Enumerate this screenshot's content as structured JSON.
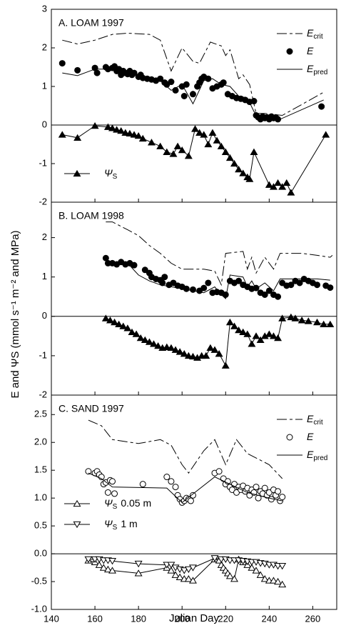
{
  "ylabel": "E and ΨS (mmol s⁻¹ m⁻² and MPa)",
  "xlabel": "Julian Day",
  "chart_data": [
    {
      "type": "line",
      "panel_label": "A. LOAM 1997",
      "ylim": [
        -2,
        3
      ],
      "yticks": [
        -2,
        -1,
        0,
        1,
        2,
        3
      ],
      "legend": true,
      "series": [
        {
          "name": "E",
          "subscript": "crit",
          "line": "dashed",
          "marker": "none",
          "color": "#000000",
          "x": [
            145,
            152,
            160,
            168,
            175,
            185,
            190,
            195,
            200,
            205,
            208,
            213,
            218,
            220,
            222,
            226,
            228,
            231,
            234,
            238,
            246,
            265
          ],
          "values": [
            2.2,
            2.1,
            2.2,
            2.35,
            2.38,
            2.35,
            2.2,
            1.4,
            2.0,
            1.65,
            1.6,
            2.15,
            2.05,
            1.8,
            1.95,
            1.2,
            1.3,
            1.05,
            0.3,
            0.3,
            0.25,
            0.85
          ]
        },
        {
          "name": "E",
          "line": "none",
          "marker": "filled-circle",
          "color": "#000000",
          "x": [
            145,
            152,
            160,
            161,
            165,
            166,
            168,
            169,
            170,
            171,
            172,
            173,
            174,
            175,
            176,
            177,
            178,
            180,
            181,
            182,
            184,
            186,
            188,
            190,
            192,
            193,
            195,
            197,
            200,
            201,
            202,
            205,
            207,
            208,
            209,
            210,
            212,
            214,
            216,
            218,
            219,
            221,
            223,
            225,
            227,
            229,
            231,
            233,
            234,
            235,
            236,
            237,
            238,
            239,
            240,
            241,
            242,
            243,
            244,
            264
          ],
          "values": [
            1.6,
            1.42,
            1.48,
            1.35,
            1.5,
            1.45,
            1.48,
            1.52,
            1.4,
            1.45,
            1.3,
            1.4,
            1.35,
            1.32,
            1.4,
            1.3,
            1.35,
            1.25,
            1.3,
            1.22,
            1.2,
            1.18,
            1.15,
            1.2,
            1.1,
            1.05,
            1.12,
            0.9,
            1.0,
            0.75,
            1.05,
            0.8,
            1.0,
            1.1,
            1.2,
            1.25,
            1.2,
            0.95,
            1.0,
            1.05,
            1.1,
            0.8,
            0.75,
            0.7,
            0.68,
            0.65,
            0.6,
            0.62,
            0.25,
            0.2,
            0.15,
            0.22,
            0.18,
            0.2,
            0.15,
            0.22,
            0.18,
            0.2,
            0.15,
            0.48
          ]
        },
        {
          "name": "E",
          "subscript": "pred",
          "line": "solid",
          "marker": "none",
          "color": "#000000",
          "x": [
            145,
            152,
            160,
            168,
            172,
            180,
            190,
            195,
            200,
            205,
            210,
            214,
            218,
            222,
            226,
            230,
            233,
            235,
            245,
            265
          ],
          "values": [
            1.35,
            1.28,
            1.45,
            1.45,
            1.4,
            1.28,
            1.15,
            0.9,
            1.05,
            0.55,
            1.15,
            1.2,
            1.05,
            1.0,
            0.75,
            0.7,
            0.35,
            0.2,
            0.15,
            0.65
          ]
        },
        {
          "name": "Ψ",
          "subscript": "S",
          "line": "solid",
          "marker": "filled-triangle",
          "color": "#000000",
          "x": [
            145,
            152,
            160,
            166,
            168,
            170,
            172,
            174,
            176,
            178,
            180,
            182,
            186,
            190,
            193,
            196,
            198,
            200,
            203,
            206,
            208,
            210,
            212,
            214,
            216,
            218,
            220,
            222,
            224,
            226,
            228,
            230,
            231,
            233,
            240,
            242,
            244,
            246,
            248,
            250,
            266
          ],
          "values": [
            -0.25,
            -0.33,
            -0.02,
            -0.05,
            -0.08,
            -0.12,
            -0.15,
            -0.2,
            -0.22,
            -0.25,
            -0.28,
            -0.35,
            -0.45,
            -0.55,
            -0.7,
            -0.75,
            -0.55,
            -0.65,
            -0.8,
            -0.1,
            -0.2,
            -0.25,
            -0.5,
            -0.2,
            -0.4,
            -0.55,
            -0.7,
            -0.85,
            -1.0,
            -1.15,
            -1.25,
            -1.35,
            -1.4,
            -0.7,
            -1.55,
            -1.6,
            -1.5,
            -1.6,
            -1.5,
            -1.75,
            -0.25
          ]
        }
      ]
    },
    {
      "type": "line",
      "panel_label": "B. LOAM 1998",
      "ylim": [
        -2,
        2.9
      ],
      "yticks": [
        -2,
        -1,
        0,
        1,
        2
      ],
      "legend": false,
      "series": [
        {
          "name": "E",
          "subscript": "crit",
          "line": "dashed",
          "marker": "none",
          "color": "#000000",
          "x": [
            165,
            168,
            175,
            180,
            185,
            190,
            195,
            200,
            210,
            215,
            218,
            220,
            228,
            230,
            232,
            234,
            238,
            242,
            245,
            255,
            262,
            268,
            269
          ],
          "values": [
            2.4,
            2.4,
            2.2,
            2.05,
            1.8,
            1.6,
            1.35,
            1.2,
            1.2,
            1.15,
            0.8,
            1.6,
            1.65,
            1.2,
            1.5,
            1.1,
            1.5,
            1.2,
            1.6,
            1.6,
            1.55,
            1.5,
            1.55
          ]
        },
        {
          "name": "E",
          "line": "none",
          "marker": "filled-circle",
          "color": "#000000",
          "x": [
            165,
            166,
            168,
            170,
            172,
            174,
            176,
            178,
            183,
            185,
            186,
            188,
            190,
            191,
            192,
            194,
            196,
            198,
            200,
            202,
            205,
            208,
            210,
            212,
            214,
            216,
            218,
            220,
            222,
            224,
            226,
            228,
            230,
            232,
            234,
            236,
            238,
            240,
            242,
            244,
            246,
            248,
            250,
            252,
            254,
            256,
            258,
            260,
            262,
            266,
            268
          ],
          "values": [
            1.48,
            1.35,
            1.35,
            1.32,
            1.38,
            1.32,
            1.35,
            1.3,
            1.18,
            1.1,
            1.0,
            0.95,
            0.92,
            0.85,
            1.0,
            0.8,
            0.85,
            0.78,
            0.75,
            0.7,
            0.68,
            0.65,
            0.72,
            0.85,
            0.6,
            0.62,
            0.6,
            0.55,
            0.9,
            0.85,
            0.9,
            0.8,
            0.75,
            0.7,
            0.72,
            0.6,
            0.55,
            0.65,
            0.55,
            0.5,
            0.85,
            0.78,
            0.8,
            0.9,
            0.85,
            0.95,
            0.9,
            0.85,
            0.8,
            0.78,
            0.73
          ]
        },
        {
          "name": "E",
          "subscript": "pred",
          "line": "solid",
          "marker": "none",
          "color": "#000000",
          "x": [
            165,
            175,
            180,
            185,
            190,
            200,
            210,
            215,
            218,
            220,
            222,
            228,
            230,
            232,
            234,
            238,
            242,
            245,
            255,
            262,
            268
          ],
          "values": [
            1.35,
            1.35,
            1.05,
            0.9,
            0.8,
            0.7,
            0.6,
            0.75,
            0.55,
            0.45,
            1.05,
            1.0,
            0.75,
            0.9,
            0.7,
            0.85,
            0.65,
            0.95,
            0.95,
            0.95,
            0.92
          ]
        },
        {
          "name": "Ψ",
          "subscript": "S",
          "line": "solid",
          "marker": "filled-triangle",
          "color": "#000000",
          "x": [
            165,
            167,
            169,
            171,
            173,
            175,
            177,
            179,
            181,
            183,
            185,
            187,
            189,
            191,
            193,
            195,
            197,
            199,
            201,
            203,
            205,
            207,
            209,
            211,
            213,
            215,
            217,
            220,
            222,
            224,
            226,
            228,
            230,
            232,
            234,
            236,
            238,
            240,
            242,
            244,
            246,
            250,
            252,
            255,
            258,
            262,
            265,
            268
          ],
          "values": [
            -0.05,
            -0.1,
            -0.15,
            -0.2,
            -0.25,
            -0.3,
            -0.4,
            -0.45,
            -0.55,
            -0.6,
            -0.65,
            -0.7,
            -0.75,
            -0.8,
            -0.78,
            -0.8,
            -0.85,
            -0.9,
            -0.95,
            -1.0,
            -1.02,
            -1.05,
            -1.0,
            -1.0,
            -0.8,
            -0.85,
            -0.95,
            -1.25,
            -0.15,
            -0.25,
            -0.35,
            -0.4,
            -0.45,
            -0.7,
            -0.5,
            -0.6,
            -0.5,
            -0.45,
            -0.5,
            -0.55,
            -0.05,
            -0.02,
            -0.05,
            -0.1,
            -0.12,
            -0.15,
            -0.2,
            -0.2
          ]
        }
      ]
    },
    {
      "type": "line",
      "panel_label": "C. SAND 1997",
      "ylim": [
        -1,
        2.85
      ],
      "yticks": [
        {
          "value": -1,
          "label": "-1.0"
        },
        -0.5,
        {
          "value": 0,
          "label": "0.0"
        },
        0.5,
        {
          "value": 1,
          "label": "1.0"
        },
        1.5,
        {
          "value": 2,
          "label": "2.0"
        },
        2.5
      ],
      "xlim": [
        140,
        271
      ],
      "xticks": [
        140,
        160,
        180,
        200,
        220,
        240,
        260
      ],
      "legend": true,
      "series": [
        {
          "name": "E",
          "subscript": "crit",
          "line": "dashed",
          "marker": "none",
          "color": "#000000",
          "x": [
            157,
            163,
            168,
            180,
            190,
            195,
            200,
            203,
            210,
            215,
            220,
            225,
            230,
            240,
            246
          ],
          "values": [
            2.4,
            2.3,
            2.05,
            1.98,
            2.05,
            1.95,
            1.6,
            1.45,
            1.85,
            2.05,
            1.6,
            2.05,
            1.8,
            1.6,
            1.35
          ]
        },
        {
          "name": "E",
          "line": "none",
          "marker": "open-circle",
          "color": "#000000",
          "x": [
            157,
            160,
            161,
            162,
            163,
            164,
            165,
            166,
            167,
            168,
            169,
            182,
            193,
            195,
            197,
            198,
            199,
            200,
            201,
            202,
            203,
            204,
            205,
            215,
            217,
            219,
            220,
            221,
            222,
            223,
            224,
            225,
            226,
            227,
            228,
            229,
            230,
            231,
            232,
            233,
            234,
            235,
            236,
            237,
            238,
            239,
            240,
            241,
            242,
            243,
            244,
            245,
            246
          ],
          "values": [
            1.48,
            1.45,
            1.48,
            1.42,
            1.38,
            1.25,
            1.28,
            1.1,
            1.32,
            1.3,
            1.08,
            1.25,
            1.38,
            1.3,
            1.2,
            1.05,
            0.98,
            0.92,
            0.95,
            1.0,
            0.98,
            0.95,
            1.05,
            1.45,
            1.48,
            1.35,
            1.25,
            1.3,
            1.2,
            1.15,
            1.25,
            1.1,
            1.2,
            1.15,
            1.22,
            1.12,
            1.18,
            1.05,
            1.15,
            1.1,
            1.2,
            1.0,
            1.12,
            1.08,
            1.18,
            1.05,
            1.1,
            0.98,
            1.15,
            1.05,
            1.12,
            0.95,
            1.02
          ]
        },
        {
          "name": "E",
          "subscript": "pred",
          "line": "solid",
          "marker": "none",
          "color": "#000000",
          "x": [
            157,
            163,
            168,
            193,
            200,
            215,
            222,
            230,
            240,
            246
          ],
          "values": [
            1.45,
            1.35,
            1.2,
            1.18,
            0.92,
            1.38,
            1.25,
            1.1,
            1.0,
            0.95
          ]
        },
        {
          "name": "Ψ",
          "subscript": "S",
          "suffix": "0.05 m",
          "line": "solid",
          "marker": "open-triangle",
          "color": "#000000",
          "x": [
            157,
            160,
            162,
            164,
            166,
            168,
            180,
            193,
            195,
            197,
            199,
            201,
            203,
            205,
            215,
            217,
            218,
            219,
            220,
            221,
            222,
            224,
            226,
            228,
            230,
            232,
            234,
            236,
            238,
            240,
            242,
            244,
            246
          ],
          "values": [
            -0.12,
            -0.15,
            -0.2,
            -0.25,
            -0.28,
            -0.3,
            -0.35,
            -0.25,
            -0.3,
            -0.38,
            -0.42,
            -0.45,
            -0.45,
            -0.48,
            -0.1,
            -0.12,
            -0.2,
            -0.25,
            -0.3,
            -0.35,
            -0.4,
            -0.45,
            -0.1,
            -0.15,
            -0.2,
            -0.25,
            -0.3,
            -0.38,
            -0.45,
            -0.48,
            -0.48,
            -0.5,
            -0.55
          ]
        },
        {
          "name": "Ψ",
          "subscript": "S",
          "suffix": "1 m",
          "line": "solid",
          "marker": "open-triangle-down",
          "color": "#000000",
          "x": [
            157,
            160,
            162,
            164,
            166,
            168,
            180,
            193,
            195,
            197,
            199,
            201,
            203,
            205,
            215,
            218,
            220,
            222,
            224,
            226,
            228,
            230,
            232,
            234,
            236,
            238,
            240,
            242,
            244,
            246
          ],
          "values": [
            -0.1,
            -0.1,
            -0.1,
            -0.12,
            -0.12,
            -0.13,
            -0.18,
            -0.2,
            -0.2,
            -0.25,
            -0.28,
            -0.3,
            -0.28,
            -0.25,
            -0.08,
            -0.1,
            -0.1,
            -0.12,
            -0.12,
            -0.12,
            -0.13,
            -0.14,
            -0.15,
            -0.15,
            -0.17,
            -0.18,
            -0.2,
            -0.2,
            -0.22,
            -0.22
          ]
        }
      ]
    }
  ]
}
